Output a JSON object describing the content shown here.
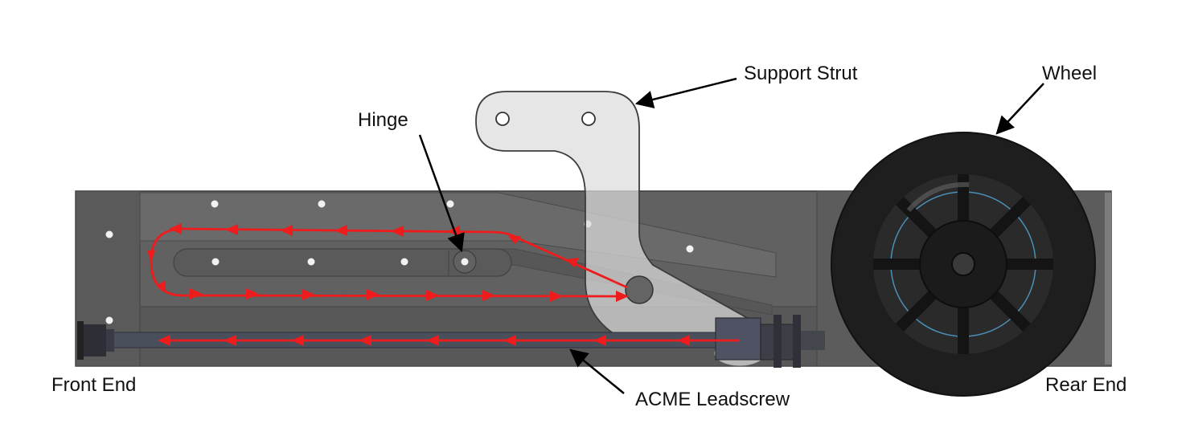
{
  "labels": {
    "support_strut": "Support Strut",
    "wheel": "Wheel",
    "hinge": "Hinge",
    "front_end": "Front End",
    "rear_end": "Rear End",
    "acme_leadscrew": "ACME Leadscrew"
  },
  "colors": {
    "background": "#ffffff",
    "frame": "#5f5f5f",
    "frame_dark": "#4e4e4e",
    "frame_light": "#6b6b6b",
    "strut": "#d8d8d8",
    "wheel": "#1c1c1c",
    "wheel_ring": "#4a90b8",
    "path": "#ee1c1c",
    "leader": "#000000"
  }
}
